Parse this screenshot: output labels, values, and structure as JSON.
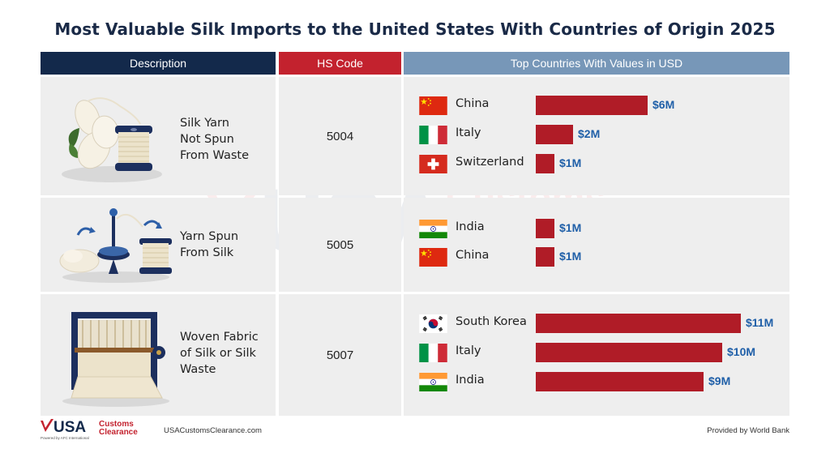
{
  "title": "Most Valuable Silk Imports to the United States With Countries of Origin 2025",
  "headers": {
    "description": "Description",
    "hs_code": "HS Code",
    "top_countries": "Top Countries With Values in USD"
  },
  "chart_data": {
    "type": "bar",
    "orientation": "horizontal",
    "title": "Most Valuable Silk Imports to the United States With Countries of Origin 2025",
    "unit": "USD millions",
    "xlim": [
      0,
      11
    ],
    "groups": [
      {
        "description": "Silk Yarn\nNot Spun\nFrom Waste",
        "hs_code": "5004",
        "entries": [
          {
            "country": "China",
            "flag": "china",
            "value": 6,
            "label": "$6M"
          },
          {
            "country": "Italy",
            "flag": "italy",
            "value": 2,
            "label": "$2M"
          },
          {
            "country": "Switzerland",
            "flag": "switzerland",
            "value": 1,
            "label": "$1M"
          }
        ]
      },
      {
        "description": "Yarn Spun\nFrom Silk",
        "hs_code": "5005",
        "entries": [
          {
            "country": "India",
            "flag": "india",
            "value": 1,
            "label": "$1M"
          },
          {
            "country": "China",
            "flag": "china",
            "value": 1,
            "label": "$1M"
          }
        ]
      },
      {
        "description": "Woven Fabric\nof Silk or Silk\nWaste",
        "hs_code": "5007",
        "entries": [
          {
            "country": "South Korea",
            "flag": "south-korea",
            "value": 11,
            "label": "$11M"
          },
          {
            "country": "Italy",
            "flag": "italy",
            "value": 10,
            "label": "$10M"
          },
          {
            "country": "India",
            "flag": "india",
            "value": 9,
            "label": "$9M"
          }
        ]
      }
    ]
  },
  "watermark": {
    "line1": "USA",
    "line2": "Customs",
    "line3": "Clearance",
    "tagline": "Powered by AFC International"
  },
  "footer": {
    "logo_usa": "USA",
    "logo_customs": "Customs",
    "logo_clearance": "Clearance",
    "logo_tagline": "Powered by AFC International",
    "url": "USACustomsClearance.com",
    "source": "Provided by World Bank"
  },
  "colors": {
    "navy": "#13294b",
    "red": "#c3222e",
    "bar": "#b01c27",
    "steel": "#7797b8",
    "value_text": "#1f5fa8",
    "row_bg": "#eeeeee"
  }
}
